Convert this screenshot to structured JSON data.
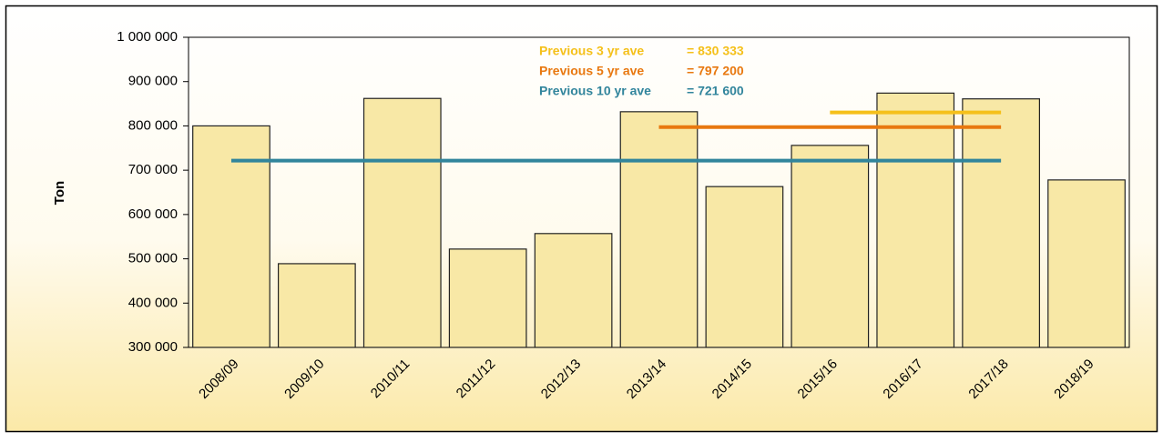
{
  "chart_data": {
    "type": "bar",
    "y_label": "Ton",
    "categories": [
      "2008/09",
      "2009/10",
      "2010/11",
      "2011/12",
      "2012/13",
      "2013/14",
      "2014/15",
      "2015/16",
      "2016/17",
      "2017/18",
      "2018/19"
    ],
    "values": [
      800000,
      489000,
      862000,
      522000,
      557000,
      832000,
      663000,
      756000,
      874000,
      861000,
      678000
    ],
    "color": "#f8e8a6",
    "ylim": [
      300000,
      1000000
    ],
    "yticks": [
      {
        "value": 300000,
        "label": "300 000"
      },
      {
        "value": 400000,
        "label": "400 000"
      },
      {
        "value": 500000,
        "label": "500 000"
      },
      {
        "value": 600000,
        "label": "600 000"
      },
      {
        "value": 700000,
        "label": "700 000"
      },
      {
        "value": 800000,
        "label": "800 000"
      },
      {
        "value": 900000,
        "label": "900 000"
      },
      {
        "value": 1000000,
        "label": "1 000 000"
      }
    ],
    "series": [
      {
        "name": "Previous 3 yr ave",
        "color": "#f5c01a",
        "value_label": "= 830 333",
        "values": [
          null,
          null,
          null,
          null,
          null,
          null,
          null,
          830333,
          830333,
          830333,
          null
        ]
      },
      {
        "name": "Previous 5 yr ave",
        "color": "#e8780f",
        "value_label": "= 797 200",
        "values": [
          null,
          null,
          null,
          null,
          null,
          797200,
          797200,
          797200,
          797200,
          797200,
          null
        ]
      },
      {
        "name": "Previous 10 yr ave",
        "color": "#31859c",
        "value_label": "= 721 600",
        "values": [
          721600,
          721600,
          721600,
          721600,
          721600,
          721600,
          721600,
          721600,
          721600,
          721600,
          null
        ]
      }
    ]
  }
}
